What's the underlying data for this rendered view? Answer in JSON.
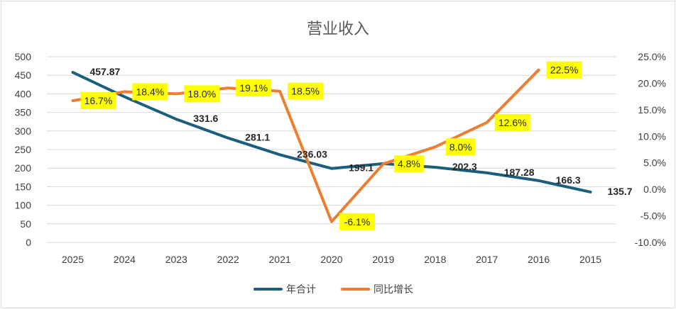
{
  "chart_data": {
    "type": "line",
    "title": "营业收入",
    "categories": [
      "2025",
      "2024",
      "2023",
      "2022",
      "2021",
      "2020",
      "2019",
      "2018",
      "2017",
      "2016",
      "2015"
    ],
    "series": [
      {
        "name": "年合计",
        "axis": "left",
        "color": "#1b5f7c",
        "values": [
          457.87,
          392.0,
          331.6,
          281.1,
          236.03,
          199.1,
          212.0,
          202.3,
          187.28,
          166.3,
          135.7
        ],
        "labels": [
          "457.87",
          "",
          "331.6",
          "281.1",
          "236.03",
          "199.1",
          "",
          "202.3",
          "187.28",
          "166.3",
          "135.7"
        ]
      },
      {
        "name": "同比增长",
        "axis": "right",
        "color": "#ed7d31",
        "values": [
          16.7,
          18.4,
          18.0,
          19.1,
          18.5,
          -6.1,
          4.8,
          8.0,
          12.6,
          22.5,
          null
        ],
        "labels": [
          "16.7%",
          "18.4%",
          "18.0%",
          "19.1%",
          "18.5%",
          "-6.1%",
          "4.8%",
          "8.0%",
          "12.6%",
          "22.5%",
          ""
        ]
      }
    ],
    "left_axis": {
      "min": 0,
      "max": 500,
      "step": 50,
      "ticks": [
        "0",
        "50",
        "100",
        "150",
        "200",
        "250",
        "300",
        "350",
        "400",
        "450",
        "500"
      ]
    },
    "right_axis": {
      "min": -10,
      "max": 25,
      "step": 5,
      "ticks": [
        "-10.0%",
        "-5.0%",
        "0.0%",
        "5.0%",
        "10.0%",
        "15.0%",
        "20.0%",
        "25.0%"
      ]
    },
    "legend_position": "bottom",
    "grid": true
  }
}
